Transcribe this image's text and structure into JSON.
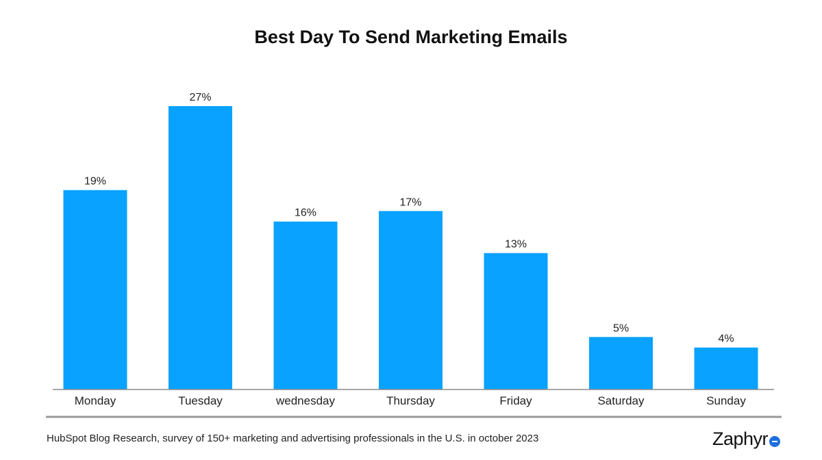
{
  "colors": {
    "bar": "#0aa2ff",
    "axis": "#8a8a8a",
    "divider": "#9a9a9a",
    "logo_accent": "#1e6fe0"
  },
  "chart_data": {
    "type": "bar",
    "title": "Best Day To Send Marketing Emails",
    "xlabel": "",
    "ylabel": "",
    "categories": [
      "Monday",
      "Tuesday",
      "wednesday",
      "Thursday",
      "Friday",
      "Saturday",
      "Sunday"
    ],
    "values": [
      19,
      27,
      16,
      17,
      13,
      5,
      4
    ],
    "value_labels": [
      "19%",
      "27%",
      "16%",
      "17%",
      "13%",
      "5%",
      "4%"
    ],
    "ylim": [
      0,
      27
    ],
    "grid": false,
    "legend": "none"
  },
  "footer": {
    "source": "HubSpot Blog Research, survey of 150+ marketing and advertising professionals in the U.S. in october 2023",
    "logo_text": "Zaphyr",
    "logo_icon": "logo-mark-icon"
  }
}
